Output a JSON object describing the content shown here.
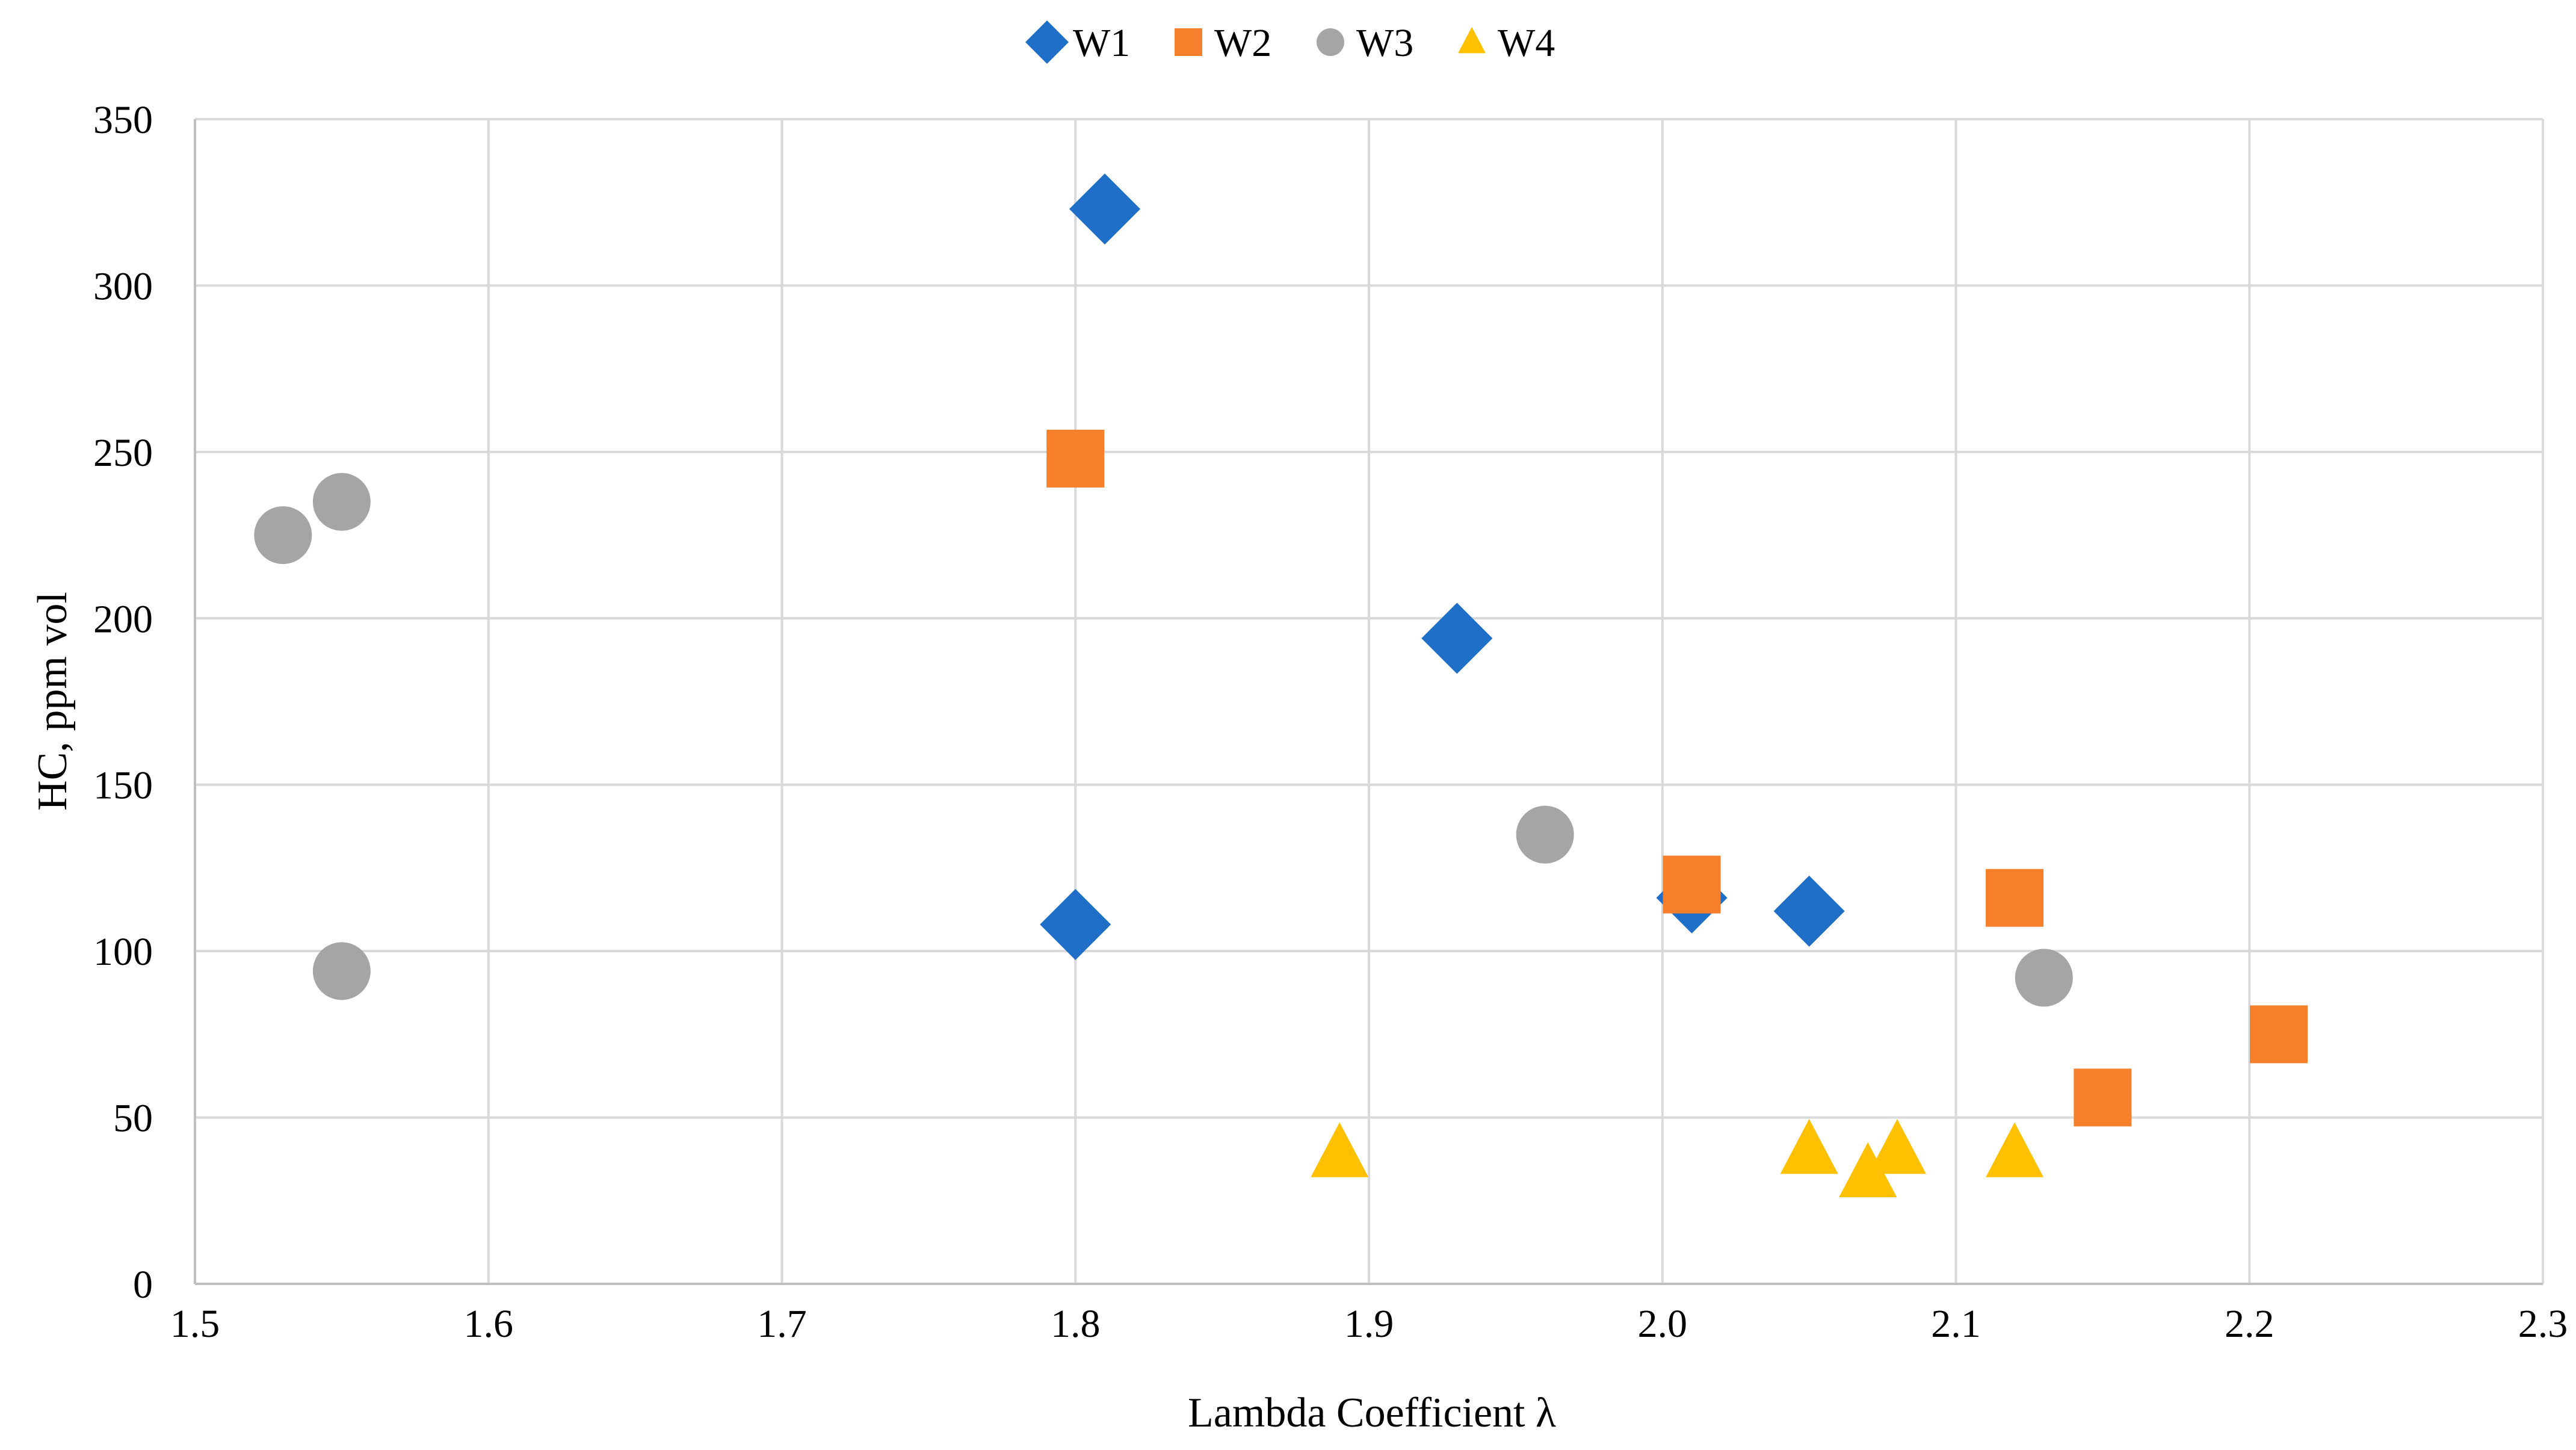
{
  "chart_data": {
    "type": "scatter",
    "title": "",
    "xlabel": "Lambda Coefficient λ",
    "ylabel": "HC, ppm vol",
    "xlim": [
      1.5,
      2.3
    ],
    "ylim": [
      0,
      350
    ],
    "x_ticks": [
      "1.5",
      "1.6",
      "1.7",
      "1.8",
      "1.9",
      "2.0",
      "2.1",
      "2.2",
      "2.3"
    ],
    "y_ticks": [
      "0",
      "50",
      "100",
      "150",
      "200",
      "250",
      "300",
      "350"
    ],
    "grid": true,
    "legend_position": "top-center",
    "series": [
      {
        "name": "W1",
        "marker": "diamond",
        "color": "#1f6fc9",
        "points": [
          {
            "x": 1.81,
            "y": 323
          },
          {
            "x": 1.93,
            "y": 194
          },
          {
            "x": 1.8,
            "y": 108
          },
          {
            "x": 2.01,
            "y": 116
          },
          {
            "x": 2.05,
            "y": 112
          }
        ]
      },
      {
        "name": "W2",
        "marker": "square",
        "color": "#f57f2a",
        "points": [
          {
            "x": 1.8,
            "y": 248
          },
          {
            "x": 2.01,
            "y": 120
          },
          {
            "x": 2.12,
            "y": 116
          },
          {
            "x": 2.15,
            "y": 56
          },
          {
            "x": 2.21,
            "y": 75
          }
        ]
      },
      {
        "name": "W3",
        "marker": "circle",
        "color": "#a5a5a5",
        "points": [
          {
            "x": 1.53,
            "y": 225
          },
          {
            "x": 1.55,
            "y": 235
          },
          {
            "x": 1.55,
            "y": 94
          },
          {
            "x": 1.96,
            "y": 135
          },
          {
            "x": 2.13,
            "y": 92
          }
        ]
      },
      {
        "name": "W4",
        "marker": "triangle",
        "color": "#ffc000",
        "points": [
          {
            "x": 1.89,
            "y": 39
          },
          {
            "x": 2.05,
            "y": 40
          },
          {
            "x": 2.07,
            "y": 33
          },
          {
            "x": 2.08,
            "y": 40
          },
          {
            "x": 2.12,
            "y": 39
          }
        ]
      }
    ]
  }
}
